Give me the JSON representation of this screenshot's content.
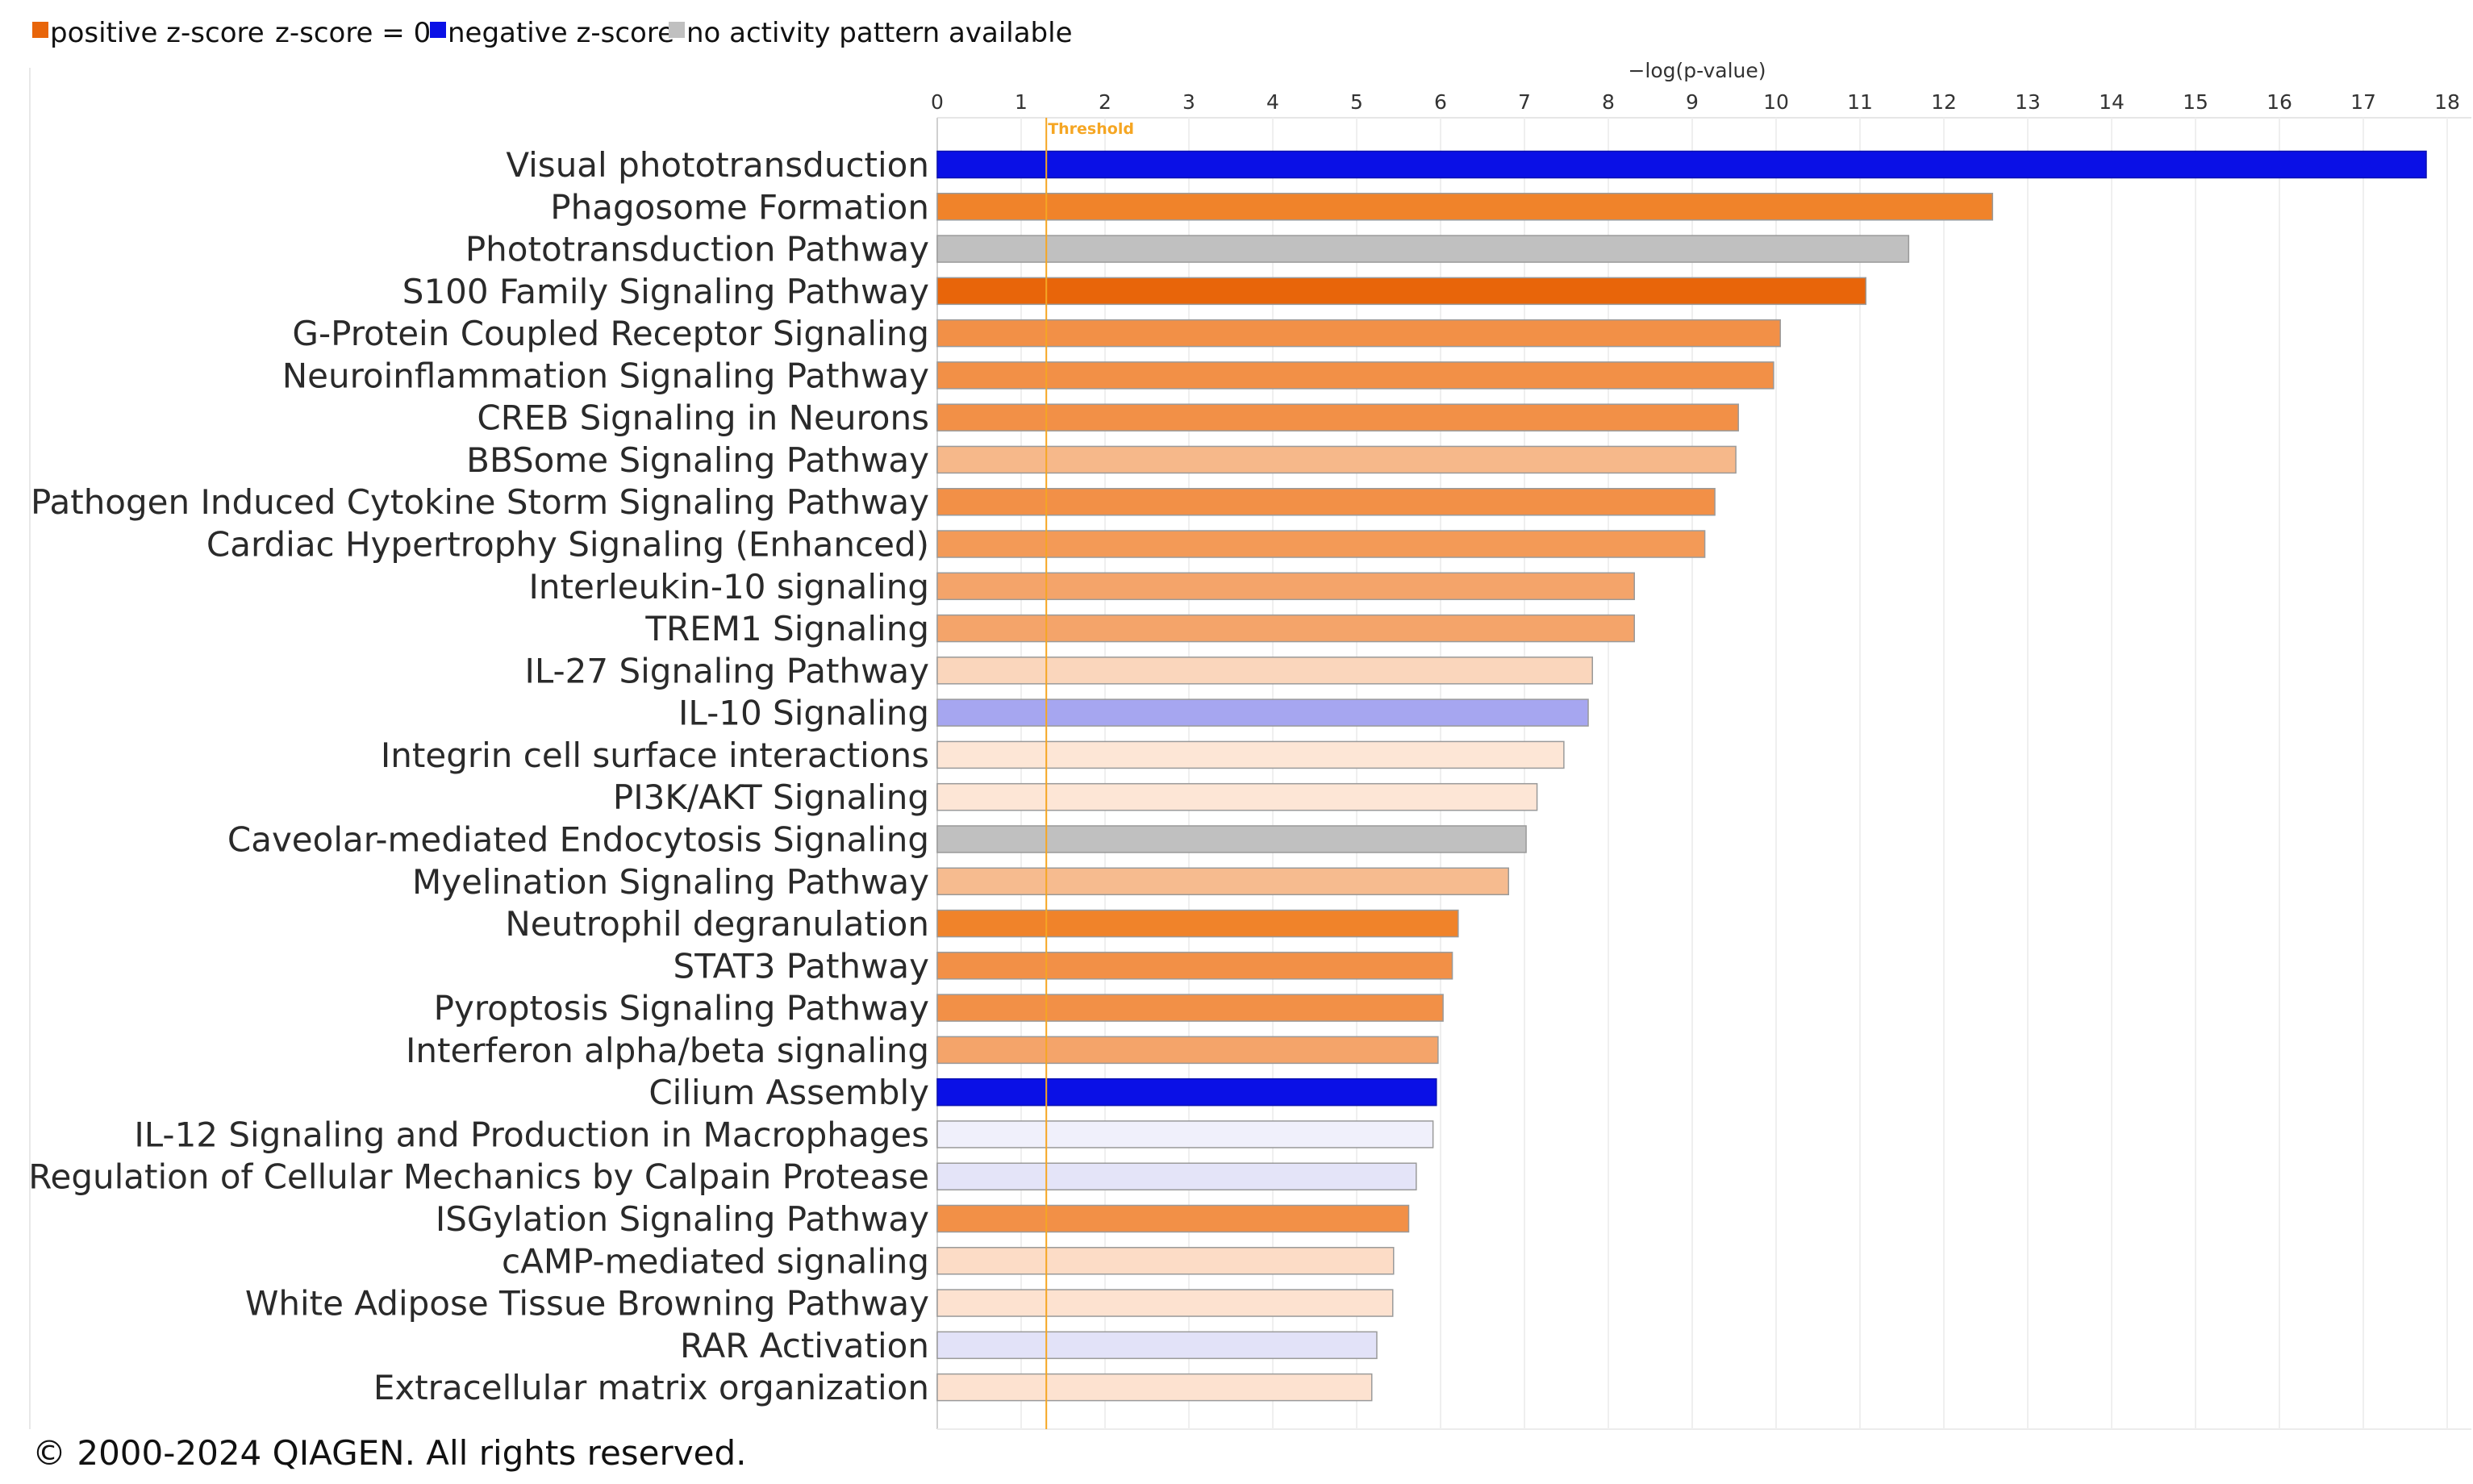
{
  "legend": [
    {
      "label": "positive z-score",
      "color": "#e8650a"
    },
    {
      "label": "z-score = 0",
      "color": ""
    },
    {
      "label": "negative z-score",
      "color": "#0a10e6"
    },
    {
      "label": "no activity pattern available",
      "color": "#c0c0c0"
    }
  ],
  "copyright": "© 2000-2024 QIAGEN. All rights reserved.",
  "chart_data": {
    "type": "bar",
    "orientation": "horizontal",
    "xlabel": "−log(p-value)",
    "xlim": [
      0,
      18.7
    ],
    "xticks": [
      0,
      1,
      2,
      3,
      4,
      5,
      6,
      7,
      8,
      9,
      10,
      11,
      12,
      13,
      14,
      15,
      16,
      17,
      18
    ],
    "grid": true,
    "threshold": {
      "label": "Threshold",
      "value": 1.3,
      "color": "#f5a623"
    },
    "categories": [
      "Visual phototransduction",
      "Phagosome Formation",
      "Phototransduction Pathway",
      "S100 Family Signaling Pathway",
      "G-Protein Coupled Receptor Signaling",
      "Neuroinflammation Signaling Pathway",
      "CREB Signaling in Neurons",
      "BBSome Signaling Pathway",
      "Pathogen Induced Cytokine Storm Signaling Pathway",
      "Cardiac Hypertrophy Signaling (Enhanced)",
      "Interleukin-10 signaling",
      "TREM1 Signaling",
      "IL-27 Signaling Pathway",
      "IL-10 Signaling",
      "Integrin cell surface interactions",
      "PI3K/AKT Signaling",
      "Caveolar-mediated Endocytosis Signaling",
      "Myelination Signaling Pathway",
      "Neutrophil degranulation",
      "STAT3 Pathway",
      "Pyroptosis Signaling Pathway",
      "Interferon alpha/beta signaling",
      "Cilium Assembly",
      "IL-12 Signaling and Production in Macrophages",
      "Regulation of Cellular Mechanics by Calpain Protease",
      "ISGylation Signaling Pathway",
      "cAMP-mediated signaling",
      "White Adipose Tissue Browning Pathway",
      "RAR Activation",
      "Extracellular matrix organization"
    ],
    "values": [
      17.75,
      12.58,
      11.58,
      11.07,
      10.05,
      9.97,
      9.55,
      9.52,
      9.27,
      9.15,
      8.31,
      8.31,
      7.81,
      7.76,
      7.47,
      7.15,
      7.02,
      6.81,
      6.21,
      6.14,
      6.03,
      5.97,
      5.95,
      5.91,
      5.71,
      5.62,
      5.44,
      5.43,
      5.24,
      5.18
    ],
    "colors": [
      "#0a10e6",
      "#f0832a",
      "#c0c0c0",
      "#e8650a",
      "#f29047",
      "#f29047",
      "#f29047",
      "#f6b88a",
      "#f29047",
      "#f39a57",
      "#f4a46a",
      "#f4a46a",
      "#fad6bc",
      "#a6a6f0",
      "#fde6d6",
      "#fde6d6",
      "#c0c0c0",
      "#f6bb8f",
      "#f0832a",
      "#f29047",
      "#f29047",
      "#f4a46a",
      "#0a10e6",
      "#f0f0fb",
      "#e4e4f8",
      "#f29047",
      "#fcdcc6",
      "#fde2d0",
      "#e2e2f8",
      "#fde2d0"
    ]
  }
}
